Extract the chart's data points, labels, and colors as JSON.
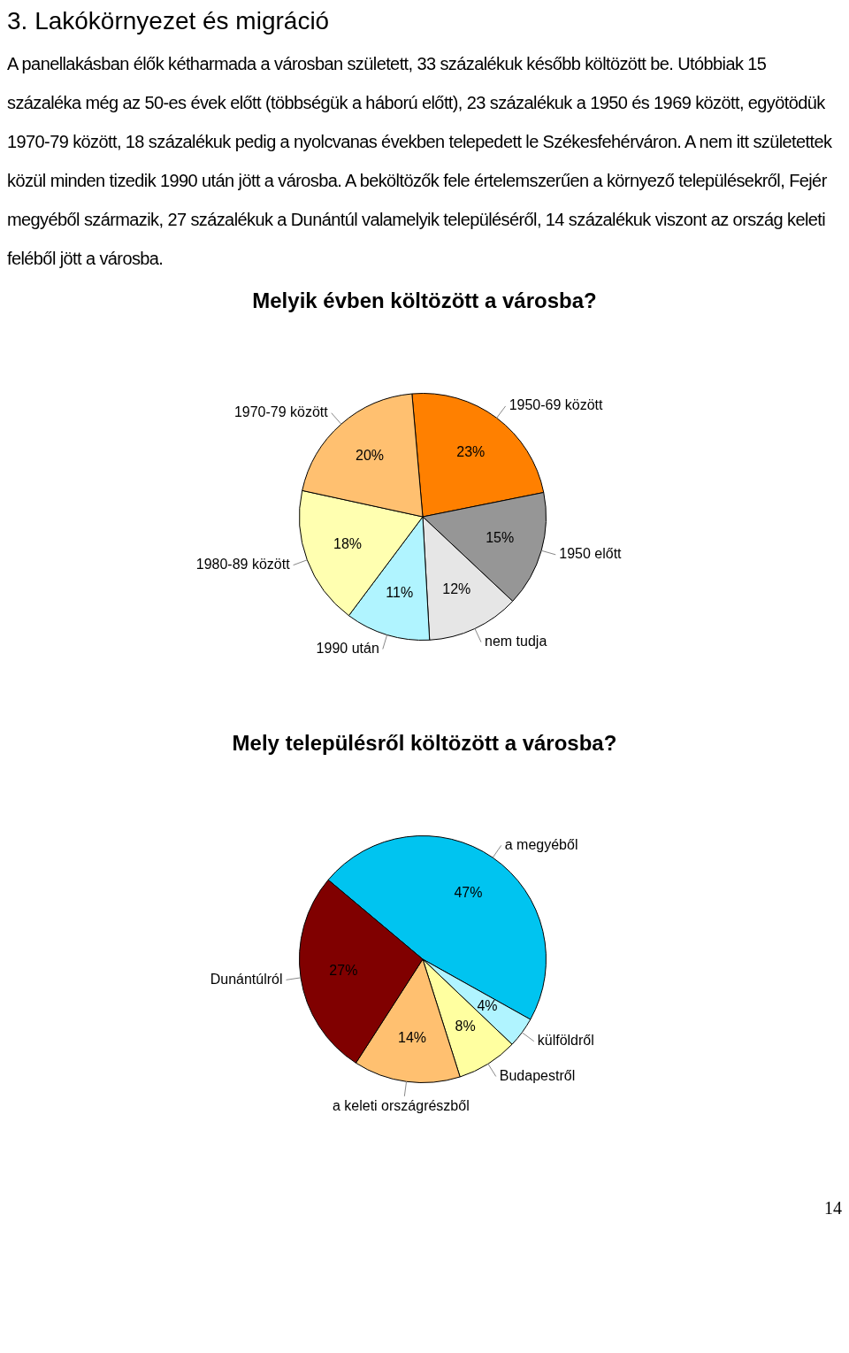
{
  "chart_data": [
    {
      "type": "pie",
      "title": "Melyik évben költözött a városba?",
      "annotations": [
        "3. Lakókörnyezet  és migráció",
        "A panellakásban élők kétharmada a városban született, 33 százalékuk később költözött be. Utóbbiak 15 százaléka még az 50-es évek előtt (többségük a háború előtt), 23 százalékuk a 1950 és 1969 között, egyötödük 1970-79 között, 18 százalékuk pedig a nyolcvanas években telepedett le Székesfehérváron. A nem itt születettek közül minden tizedik 1990 után jött a városba. A beköltözők fele értelemszerűen a környező településekről, Fejér megyéből származik, 27 százalékuk a Dunántúl valamelyik településéről, 14 százalékuk viszont az ország keleti feléből jött a városba."
      ],
      "categories": [
        "1950-69 között",
        "1950 előtt",
        "nem tudja",
        "1990 után",
        "1980-89 között",
        "1970-79 között"
      ],
      "values": [
        23,
        15,
        12,
        11,
        18,
        20
      ],
      "value_labels": [
        "23%",
        "15%",
        "12%",
        "11%",
        "18%",
        "20%"
      ],
      "colors": [
        "#ff8000",
        "#969696",
        "#e6e6e6",
        "#b0f4ff",
        "#ffffb0",
        "#ffc070"
      ]
    },
    {
      "type": "pie",
      "title": "Mely településről költözött a városba?",
      "annotations": [
        "14"
      ],
      "categories": [
        "a megyéből",
        "külföldről",
        "Budapestről",
        "a keleti országrészből",
        "Dunántúlról"
      ],
      "values": [
        47,
        4,
        8,
        14,
        27
      ],
      "value_labels": [
        "47%",
        "4%",
        "8%",
        "14%",
        "27%"
      ],
      "colors": [
        "#00c4f0",
        "#b0f4ff",
        "#ffffa0",
        "#ffc070",
        "#800000"
      ]
    }
  ]
}
